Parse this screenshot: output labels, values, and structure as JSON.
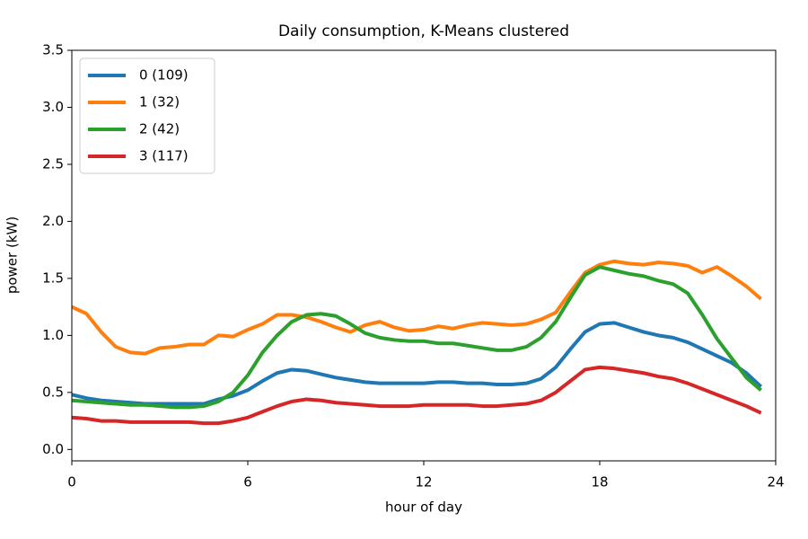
{
  "chart_data": {
    "type": "line",
    "title": "Daily consumption, K-Means clustered",
    "x_label": "hour of day",
    "y_label": "power (kW)",
    "x": [
      0,
      0.5,
      1,
      1.5,
      2,
      2.5,
      3,
      3.5,
      4,
      4.5,
      5,
      5.5,
      6,
      6.5,
      7,
      7.5,
      8,
      8.5,
      9,
      9.5,
      10,
      10.5,
      11,
      11.5,
      12,
      12.5,
      13,
      13.5,
      14,
      14.5,
      15,
      15.5,
      16,
      16.5,
      17,
      17.5,
      18,
      18.5,
      19,
      19.5,
      20,
      20.5,
      21,
      21.5,
      22,
      22.5,
      23,
      23.5
    ],
    "series": [
      {
        "name": "0 (109)",
        "color": "#1f77b4",
        "values": [
          0.48,
          0.45,
          0.43,
          0.42,
          0.41,
          0.4,
          0.4,
          0.4,
          0.4,
          0.4,
          0.44,
          0.47,
          0.52,
          0.6,
          0.67,
          0.7,
          0.69,
          0.66,
          0.63,
          0.61,
          0.59,
          0.58,
          0.58,
          0.58,
          0.58,
          0.59,
          0.59,
          0.58,
          0.58,
          0.57,
          0.57,
          0.58,
          0.62,
          0.72,
          0.88,
          1.03,
          1.1,
          1.11,
          1.07,
          1.03,
          1.0,
          0.98,
          0.94,
          0.88,
          0.82,
          0.76,
          0.67,
          0.55
        ]
      },
      {
        "name": "1 (32)",
        "color": "#ff7f0e",
        "values": [
          1.25,
          1.19,
          1.03,
          0.9,
          0.85,
          0.84,
          0.89,
          0.9,
          0.92,
          0.92,
          1.0,
          0.99,
          1.05,
          1.1,
          1.18,
          1.18,
          1.16,
          1.12,
          1.07,
          1.03,
          1.09,
          1.12,
          1.07,
          1.04,
          1.05,
          1.08,
          1.06,
          1.09,
          1.11,
          1.1,
          1.09,
          1.1,
          1.14,
          1.2,
          1.38,
          1.55,
          1.62,
          1.65,
          1.63,
          1.62,
          1.64,
          1.63,
          1.61,
          1.55,
          1.6,
          1.52,
          1.43,
          1.32
        ]
      },
      {
        "name": "2 (42)",
        "color": "#2ca02c",
        "values": [
          0.43,
          0.42,
          0.41,
          0.4,
          0.39,
          0.39,
          0.38,
          0.37,
          0.37,
          0.38,
          0.42,
          0.5,
          0.65,
          0.85,
          1.0,
          1.12,
          1.18,
          1.19,
          1.17,
          1.1,
          1.02,
          0.98,
          0.96,
          0.95,
          0.95,
          0.93,
          0.93,
          0.91,
          0.89,
          0.87,
          0.87,
          0.9,
          0.98,
          1.12,
          1.33,
          1.53,
          1.6,
          1.57,
          1.54,
          1.52,
          1.48,
          1.45,
          1.37,
          1.18,
          0.97,
          0.8,
          0.63,
          0.52
        ]
      },
      {
        "name": "3 (117)",
        "color": "#d62728",
        "values": [
          0.28,
          0.27,
          0.25,
          0.25,
          0.24,
          0.24,
          0.24,
          0.24,
          0.24,
          0.23,
          0.23,
          0.25,
          0.28,
          0.33,
          0.38,
          0.42,
          0.44,
          0.43,
          0.41,
          0.4,
          0.39,
          0.38,
          0.38,
          0.38,
          0.39,
          0.39,
          0.39,
          0.39,
          0.38,
          0.38,
          0.39,
          0.4,
          0.43,
          0.5,
          0.6,
          0.7,
          0.72,
          0.71,
          0.69,
          0.67,
          0.64,
          0.62,
          0.58,
          0.53,
          0.48,
          0.43,
          0.38,
          0.32
        ]
      }
    ],
    "xlim": [
      0,
      24
    ],
    "xticks": [
      0,
      6,
      12,
      18,
      24
    ],
    "ylim": [
      -0.1,
      3.5
    ],
    "yticks": [
      {
        "value": 0,
        "label": "0.0"
      },
      0.5,
      {
        "value": 1,
        "label": "1.0"
      },
      1.5,
      {
        "value": 2,
        "label": "2.0"
      },
      2.5,
      {
        "value": 3,
        "label": "3.0"
      },
      3.5
    ],
    "grid": false,
    "legend": "upper left"
  }
}
